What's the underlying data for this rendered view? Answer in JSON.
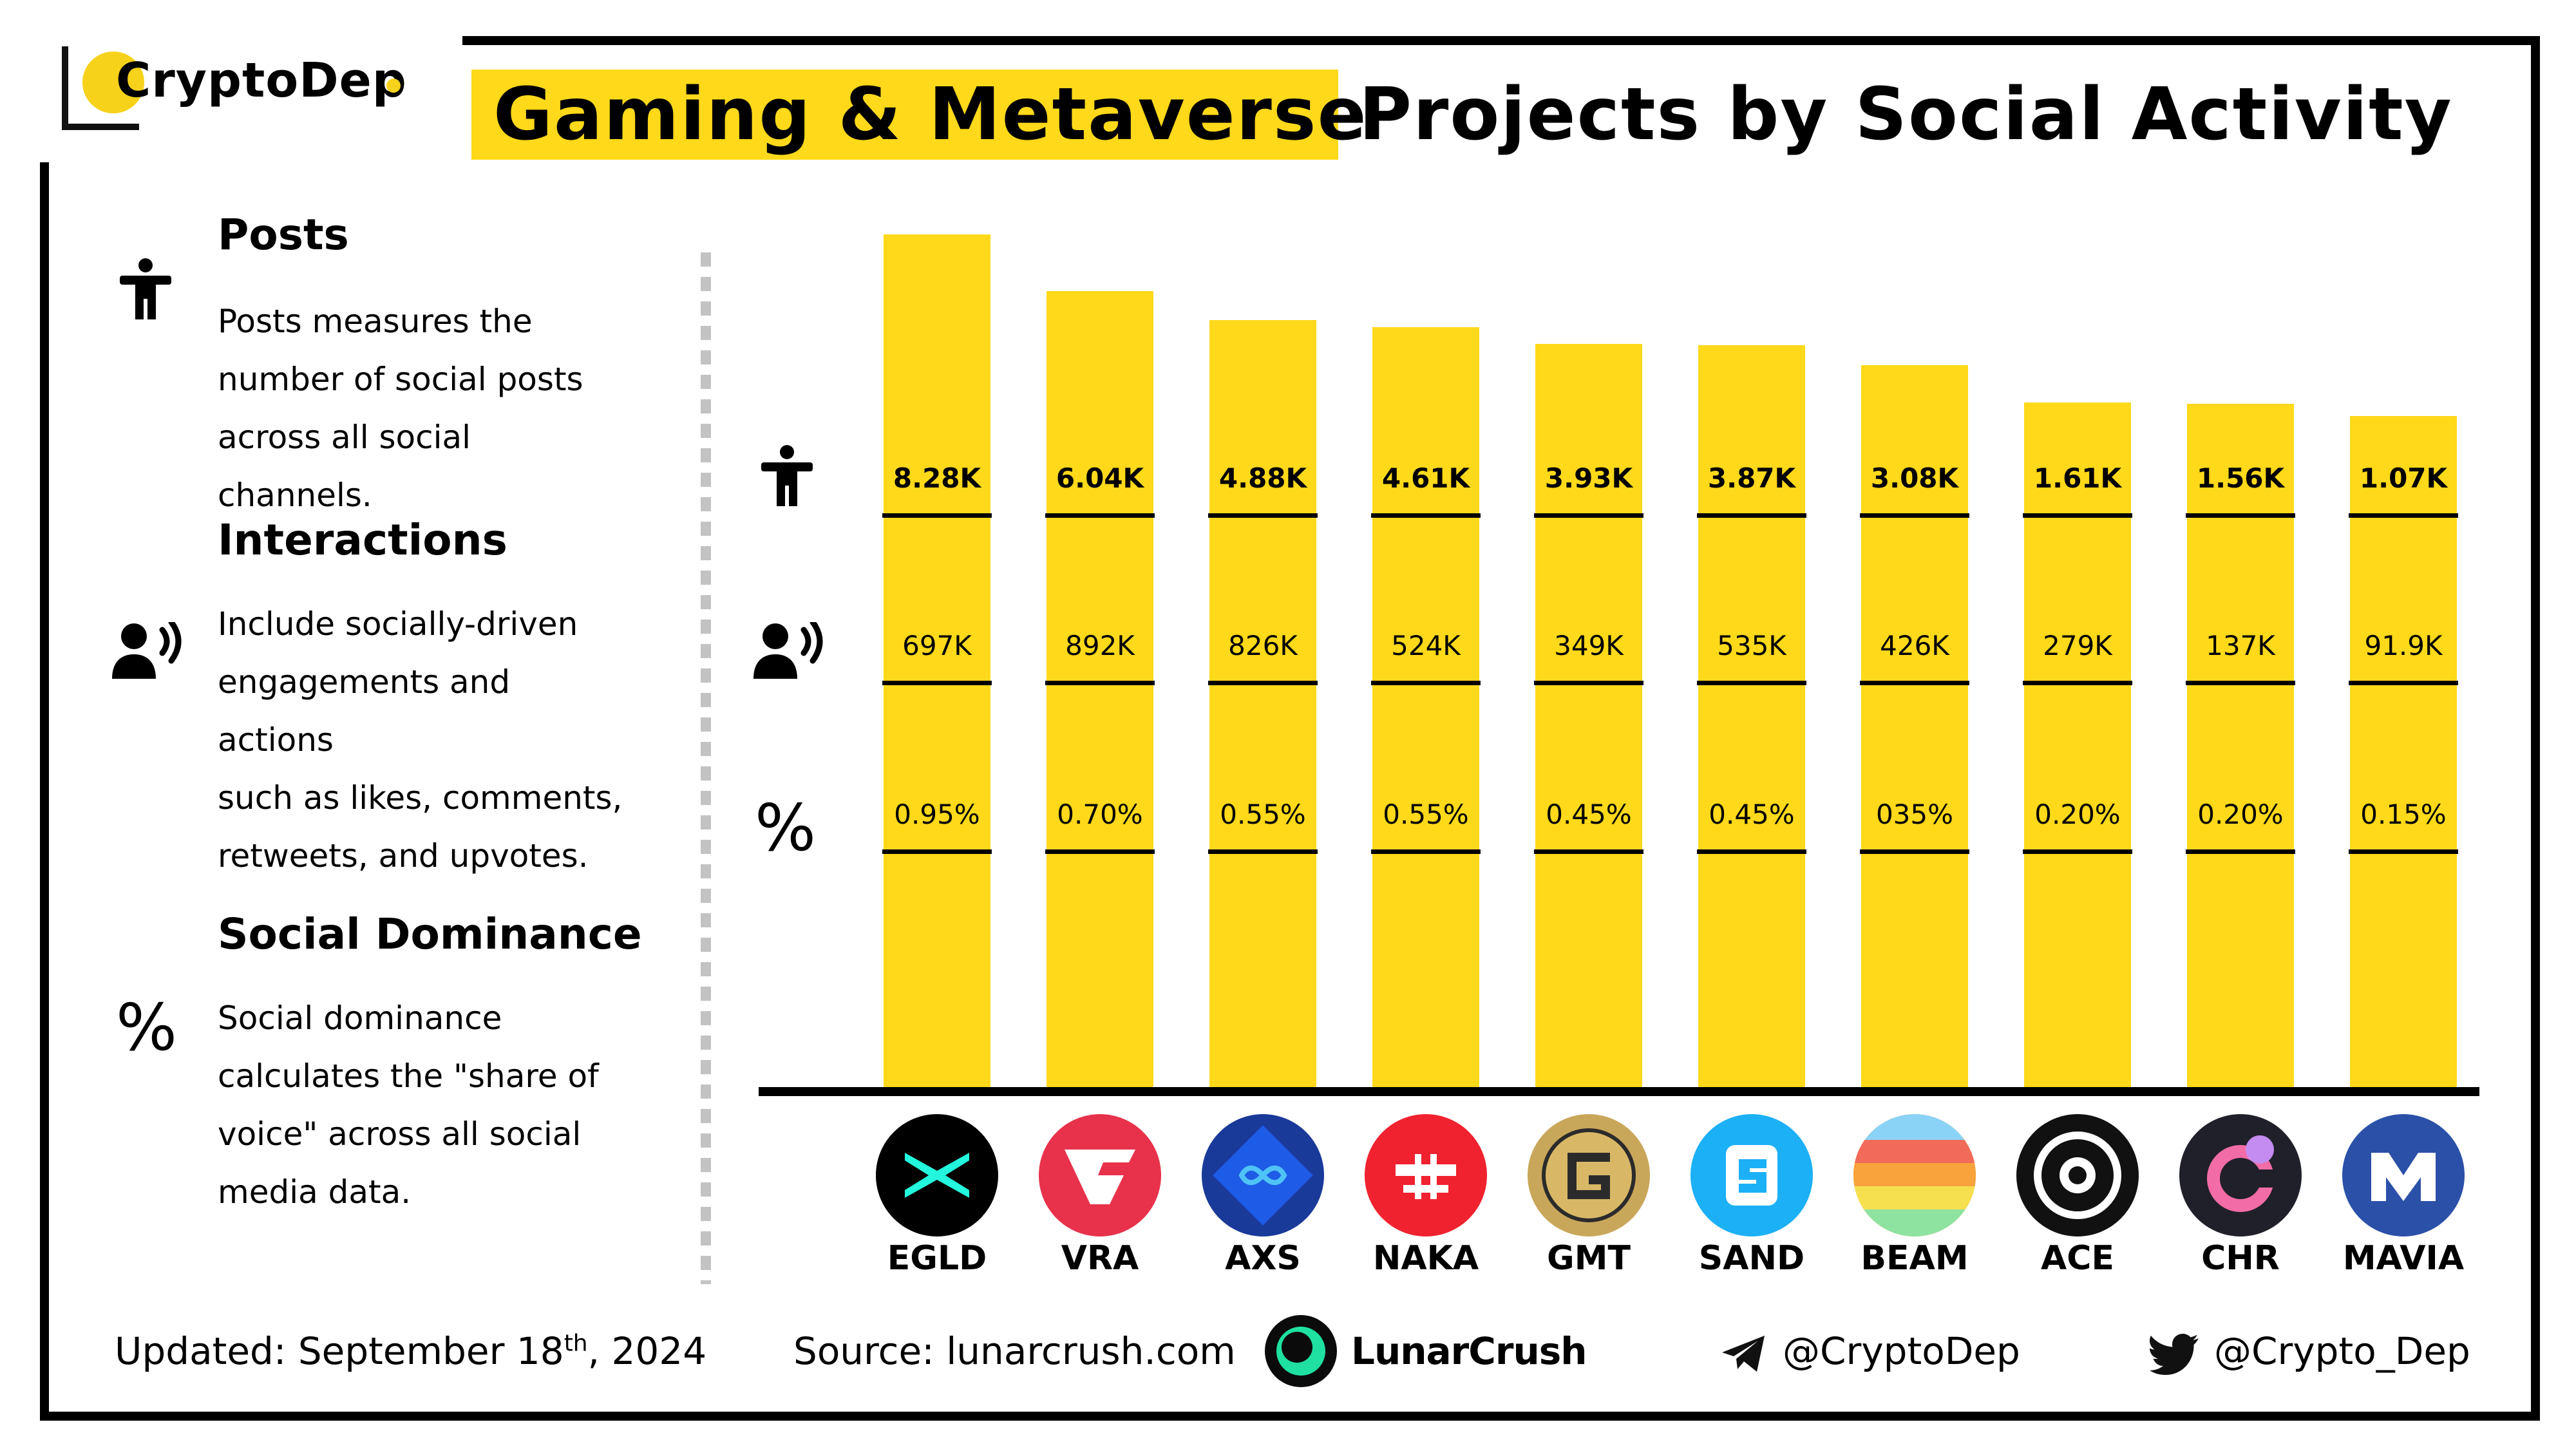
{
  "brand": {
    "name": "CryptoDep"
  },
  "title": {
    "highlight": "Gaming & Metaverse",
    "rest": "Projects by Social Activity"
  },
  "legend": [
    {
      "icon": "person-icon",
      "heading": "Posts",
      "lines": [
        "Posts measures the",
        "number of social posts",
        "across all social channels."
      ]
    },
    {
      "icon": "speaking-person-icon",
      "heading": "Interactions",
      "lines": [
        "Include socially-driven",
        "engagements and actions",
        "such as likes, comments,",
        "retweets, and upvotes."
      ]
    },
    {
      "icon": "percent-icon",
      "heading": "Social Dominance",
      "lines": [
        "Social dominance",
        "calculates the \"share of",
        "voice\" across all social",
        "media data."
      ]
    }
  ],
  "chart_data": {
    "type": "bar",
    "categories": [
      "EGLD",
      "VRA",
      "AXS",
      "NAKA",
      "GMT",
      "SAND",
      "BEAM",
      "ACE",
      "CHR",
      "MAVIA"
    ],
    "values": [
      8.28,
      6.04,
      4.88,
      4.61,
      3.93,
      3.87,
      3.08,
      1.61,
      1.56,
      1.07
    ],
    "value_unit": "K posts",
    "table_rows": [
      {
        "icon": "person-icon",
        "labels": [
          "8.28K",
          "6.04K",
          "4.88K",
          "4.61K",
          "3.93K",
          "3.87K",
          "3.08K",
          "1.61K",
          "1.56K",
          "1.07K"
        ]
      },
      {
        "icon": "speaking-person-icon",
        "labels": [
          "697K",
          "892K",
          "826K",
          "524K",
          "349K",
          "535K",
          "426K",
          "279K",
          "137K",
          "91.9K"
        ]
      },
      {
        "icon": "percent-icon",
        "labels": [
          "0.95%",
          "0.70%",
          "0.55%",
          "0.55%",
          "0.45%",
          "0.45%",
          "035%",
          "0.20%",
          "0.20%",
          "0.15%"
        ]
      }
    ],
    "bar_color": "#FFD91A",
    "grid": false,
    "legend": "left"
  },
  "coins": [
    {
      "icon": "egld-logo-icon",
      "bg": "#000000",
      "fg": "#23F7DD"
    },
    {
      "icon": "vra-logo-icon",
      "bg": "#E8324B",
      "fg": "#ffffff"
    },
    {
      "icon": "axs-logo-icon",
      "bg": "#1A3A9A",
      "fg": "#4FC3F7"
    },
    {
      "icon": "naka-logo-icon",
      "bg": "#F0222F",
      "fg": "#ffffff"
    },
    {
      "icon": "gmt-logo-icon",
      "bg": "#C9A75A",
      "fg": "#2b2b2b"
    },
    {
      "icon": "sand-logo-icon",
      "bg": "#1CB0F6",
      "fg": "#ffffff"
    },
    {
      "icon": "beam-logo-icon",
      "bg": "#F8A33C",
      "fg": "#ffffff"
    },
    {
      "icon": "ace-logo-icon",
      "bg": "#111111",
      "fg": "#ffffff"
    },
    {
      "icon": "chr-logo-icon",
      "bg": "#20202a",
      "fg": "#F26CA7"
    },
    {
      "icon": "mavia-logo-icon",
      "bg": "#2B50A8",
      "fg": "#ffffff"
    }
  ],
  "footer": {
    "updated_label": "Updated:",
    "updated_date": "September 18",
    "updated_sup": "th",
    "updated_year": ", 2024",
    "source_label": "Source:",
    "source_value": "lunarcrush.com",
    "partner": "LunarCrush",
    "telegram": "@CryptoDep",
    "twitter": "@Crypto_Dep"
  }
}
